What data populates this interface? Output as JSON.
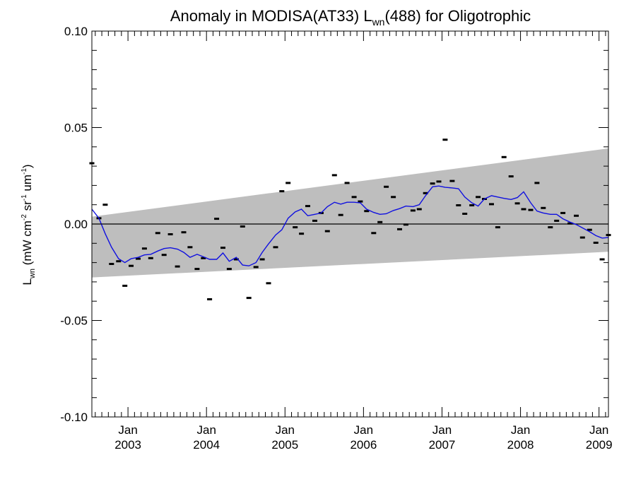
{
  "chart_data": {
    "type": "scatter",
    "title": {
      "prefix": "Anomaly in MODISA(AT33) L",
      "subscript": "wn",
      "suffix": "(488) for Oligotrophic"
    },
    "ylabel": {
      "base": "L",
      "sub": "wn",
      "units": [
        {
          "text": " (mW cm",
          "sup": "-2"
        },
        {
          "text": " sr",
          "sup": "-1"
        },
        {
          "text": " um",
          "sup": "-1"
        },
        {
          "text": ")",
          "sup": ""
        }
      ]
    },
    "xlim": [
      2002.54,
      2009.12
    ],
    "ylim": [
      -0.1,
      0.1
    ],
    "yticks": [
      {
        "v": 0.1,
        "label": "0.10"
      },
      {
        "v": 0.05,
        "label": "0.05"
      },
      {
        "v": 0.0,
        "label": "0.00"
      },
      {
        "v": -0.05,
        "label": "-0.05"
      },
      {
        "v": -0.1,
        "label": "-0.10"
      }
    ],
    "xticks": [
      {
        "v": 2003.0,
        "month": "Jan",
        "year": "2003"
      },
      {
        "v": 2004.0,
        "month": "Jan",
        "year": "2004"
      },
      {
        "v": 2005.0,
        "month": "Jan",
        "year": "2005"
      },
      {
        "v": 2006.0,
        "month": "Jan",
        "year": "2006"
      },
      {
        "v": 2007.0,
        "month": "Jan",
        "year": "2007"
      },
      {
        "v": 2008.0,
        "month": "Jan",
        "year": "2008"
      },
      {
        "v": 2009.0,
        "month": "Jan",
        "year": "2009"
      }
    ],
    "band": {
      "start_x": 2002.54,
      "end_x": 2009.12,
      "upper": [
        0.0038,
        0.0392
      ],
      "lower": [
        -0.0277,
        -0.0144
      ],
      "color": "#bebebe"
    },
    "zero_line": 0.0,
    "series": [
      {
        "kind": "points",
        "color": "#000000",
        "points": [
          [
            2002.54,
            0.0315
          ],
          [
            2002.63,
            0.003
          ],
          [
            2002.71,
            0.01
          ],
          [
            2002.79,
            -0.0207
          ],
          [
            2002.88,
            -0.0193
          ],
          [
            2002.96,
            -0.032
          ],
          [
            2003.04,
            -0.0217
          ],
          [
            2003.13,
            -0.018
          ],
          [
            2003.21,
            -0.0127
          ],
          [
            2003.29,
            -0.0177
          ],
          [
            2003.38,
            -0.0047
          ],
          [
            2003.46,
            -0.016
          ],
          [
            2003.54,
            -0.0053
          ],
          [
            2003.63,
            -0.022
          ],
          [
            2003.71,
            -0.0043
          ],
          [
            2003.79,
            -0.012
          ],
          [
            2003.88,
            -0.0233
          ],
          [
            2003.96,
            -0.0177
          ],
          [
            2004.04,
            -0.039
          ],
          [
            2004.13,
            0.0027
          ],
          [
            2004.21,
            -0.0123
          ],
          [
            2004.29,
            -0.0233
          ],
          [
            2004.38,
            -0.0183
          ],
          [
            2004.46,
            -0.0013
          ],
          [
            2004.54,
            -0.0383
          ],
          [
            2004.63,
            -0.0223
          ],
          [
            2004.71,
            -0.0183
          ],
          [
            2004.79,
            -0.0307
          ],
          [
            2004.88,
            -0.012
          ],
          [
            2004.96,
            0.017
          ],
          [
            2005.04,
            0.0213
          ],
          [
            2005.13,
            -0.0017
          ],
          [
            2005.21,
            -0.005
          ],
          [
            2005.29,
            0.0093
          ],
          [
            2005.38,
            0.0017
          ],
          [
            2005.46,
            0.0057
          ],
          [
            2005.54,
            -0.0037
          ],
          [
            2005.63,
            0.0253
          ],
          [
            2005.71,
            0.0047
          ],
          [
            2005.79,
            0.0213
          ],
          [
            2005.88,
            0.014
          ],
          [
            2005.96,
            0.0117
          ],
          [
            2006.04,
            0.0067
          ],
          [
            2006.13,
            -0.0047
          ],
          [
            2006.21,
            0.001
          ],
          [
            2006.29,
            0.0193
          ],
          [
            2006.38,
            0.014
          ],
          [
            2006.46,
            -0.0027
          ],
          [
            2006.54,
            -0.0003
          ],
          [
            2006.63,
            0.007
          ],
          [
            2006.71,
            0.0077
          ],
          [
            2006.79,
            0.016
          ],
          [
            2006.88,
            0.021
          ],
          [
            2006.96,
            0.022
          ],
          [
            2007.04,
            0.0437
          ],
          [
            2007.13,
            0.0223
          ],
          [
            2007.21,
            0.0097
          ],
          [
            2007.29,
            0.0053
          ],
          [
            2007.38,
            0.0097
          ],
          [
            2007.46,
            0.014
          ],
          [
            2007.54,
            0.013
          ],
          [
            2007.63,
            0.0103
          ],
          [
            2007.71,
            -0.0017
          ],
          [
            2007.79,
            0.0347
          ],
          [
            2007.88,
            0.0247
          ],
          [
            2007.96,
            0.0107
          ],
          [
            2008.04,
            0.0077
          ],
          [
            2008.13,
            0.0073
          ],
          [
            2008.21,
            0.0213
          ],
          [
            2008.29,
            0.0083
          ],
          [
            2008.38,
            -0.0017
          ],
          [
            2008.46,
            0.0017
          ],
          [
            2008.54,
            0.0057
          ],
          [
            2008.63,
            0.0003
          ],
          [
            2008.71,
            0.0043
          ],
          [
            2008.79,
            -0.007
          ],
          [
            2008.88,
            -0.003
          ],
          [
            2008.96,
            -0.0097
          ],
          [
            2009.04,
            -0.0183
          ],
          [
            2009.12,
            -0.0057
          ]
        ]
      },
      {
        "kind": "line",
        "color": "#1010e0",
        "points": [
          [
            2002.54,
            0.0077
          ],
          [
            2002.63,
            0.003
          ],
          [
            2002.71,
            -0.005
          ],
          [
            2002.79,
            -0.012
          ],
          [
            2002.88,
            -0.018
          ],
          [
            2002.96,
            -0.02
          ],
          [
            2003.04,
            -0.018
          ],
          [
            2003.13,
            -0.0173
          ],
          [
            2003.21,
            -0.016
          ],
          [
            2003.29,
            -0.0157
          ],
          [
            2003.38,
            -0.014
          ],
          [
            2003.46,
            -0.0127
          ],
          [
            2003.54,
            -0.0123
          ],
          [
            2003.63,
            -0.013
          ],
          [
            2003.71,
            -0.0147
          ],
          [
            2003.79,
            -0.0173
          ],
          [
            2003.88,
            -0.0157
          ],
          [
            2003.96,
            -0.017
          ],
          [
            2004.04,
            -0.0183
          ],
          [
            2004.13,
            -0.0183
          ],
          [
            2004.21,
            -0.015
          ],
          [
            2004.29,
            -0.0193
          ],
          [
            2004.38,
            -0.0173
          ],
          [
            2004.46,
            -0.0213
          ],
          [
            2004.54,
            -0.0217
          ],
          [
            2004.63,
            -0.02
          ],
          [
            2004.71,
            -0.0147
          ],
          [
            2004.79,
            -0.0103
          ],
          [
            2004.88,
            -0.0057
          ],
          [
            2004.96,
            -0.003
          ],
          [
            2005.04,
            0.003
          ],
          [
            2005.13,
            0.0063
          ],
          [
            2005.21,
            0.0077
          ],
          [
            2005.29,
            0.0043
          ],
          [
            2005.38,
            0.005
          ],
          [
            2005.46,
            0.0057
          ],
          [
            2005.54,
            0.009
          ],
          [
            2005.63,
            0.0113
          ],
          [
            2005.71,
            0.0103
          ],
          [
            2005.79,
            0.0113
          ],
          [
            2005.88,
            0.0113
          ],
          [
            2005.96,
            0.011
          ],
          [
            2006.04,
            0.0077
          ],
          [
            2006.13,
            0.006
          ],
          [
            2006.21,
            0.005
          ],
          [
            2006.29,
            0.0053
          ],
          [
            2006.38,
            0.007
          ],
          [
            2006.46,
            0.008
          ],
          [
            2006.54,
            0.0093
          ],
          [
            2006.63,
            0.009
          ],
          [
            2006.71,
            0.01
          ],
          [
            2006.79,
            0.0147
          ],
          [
            2006.88,
            0.0193
          ],
          [
            2006.96,
            0.0197
          ],
          [
            2007.04,
            0.019
          ],
          [
            2007.13,
            0.0187
          ],
          [
            2007.21,
            0.0183
          ],
          [
            2007.29,
            0.014
          ],
          [
            2007.38,
            0.011
          ],
          [
            2007.46,
            0.0093
          ],
          [
            2007.54,
            0.013
          ],
          [
            2007.63,
            0.0147
          ],
          [
            2007.71,
            0.014
          ],
          [
            2007.79,
            0.0133
          ],
          [
            2007.88,
            0.0127
          ],
          [
            2007.96,
            0.0137
          ],
          [
            2008.04,
            0.0167
          ],
          [
            2008.13,
            0.011
          ],
          [
            2008.21,
            0.0067
          ],
          [
            2008.29,
            0.0057
          ],
          [
            2008.38,
            0.005
          ],
          [
            2008.46,
            0.005
          ],
          [
            2008.54,
            0.0027
          ],
          [
            2008.63,
            0.001
          ],
          [
            2008.71,
            -0.0003
          ],
          [
            2008.79,
            -0.002
          ],
          [
            2008.88,
            -0.004
          ],
          [
            2008.96,
            -0.006
          ],
          [
            2009.04,
            -0.0073
          ],
          [
            2009.12,
            -0.007
          ]
        ]
      }
    ]
  }
}
